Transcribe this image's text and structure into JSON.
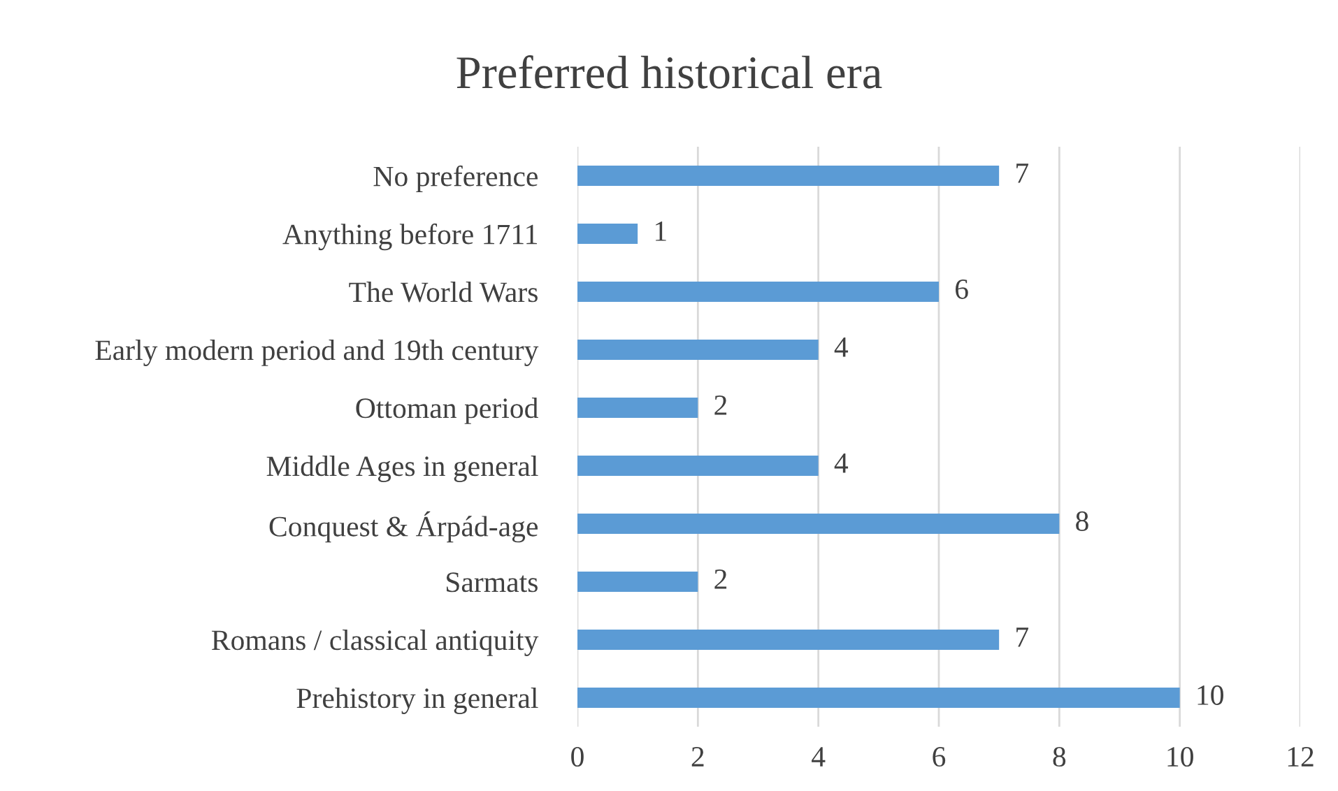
{
  "chart_data": {
    "type": "bar",
    "title": "Preferred historical era",
    "orientation": "horizontal",
    "categories": [
      "No preference",
      "Anything before 1711",
      "The World Wars",
      "Early modern period and 19th century",
      "Ottoman period",
      "Middle Ages in general",
      "Conquest & Árpád-age",
      "Sarmats",
      "Romans / classical antiquity",
      "Prehistory in general"
    ],
    "values": [
      7,
      1,
      6,
      4,
      2,
      4,
      8,
      2,
      7,
      10
    ],
    "color": "#5b9bd5",
    "xlim": [
      0,
      12
    ],
    "xticks": [
      0,
      2,
      4,
      6,
      8,
      10,
      12
    ],
    "grid": "x",
    "data_labels": true
  }
}
